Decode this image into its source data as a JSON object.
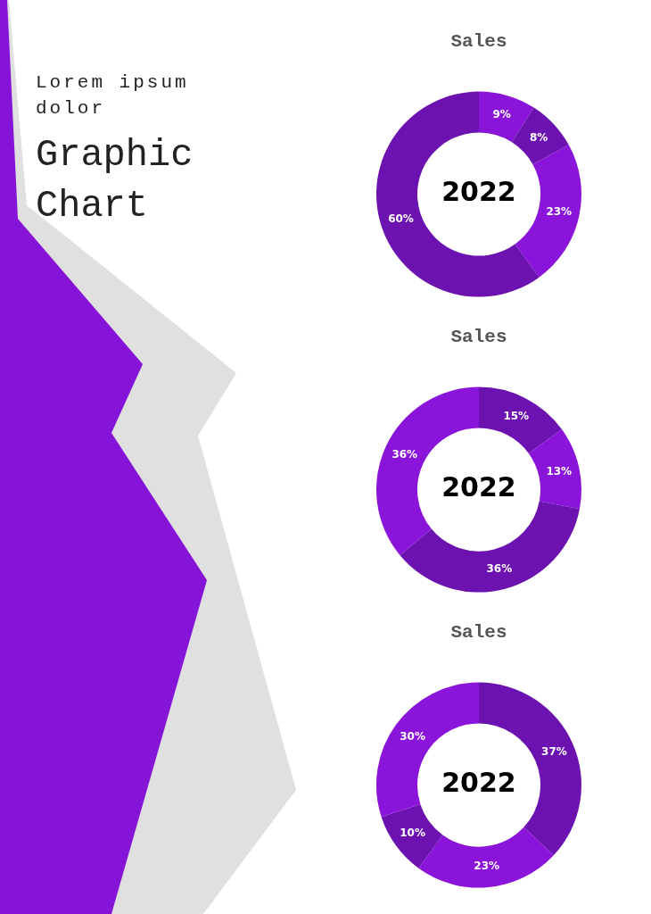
{
  "chart_data": [
    {
      "type": "other",
      "title": "Graphic Chart",
      "subtitle": "Lorem ipsum dolor"
    },
    {
      "type": "donut",
      "title": "Sales",
      "categories": [
        null,
        null,
        null,
        null
      ],
      "values": [
        9,
        8,
        23,
        60
      ],
      "value_labels": [
        "9%",
        "8%",
        "23%",
        "60%"
      ],
      "colors": [
        "#8a14d9",
        "#6b12b0",
        "#8a14d9",
        "#6b12b0"
      ],
      "annotations": [
        "2022"
      ]
    },
    {
      "type": "donut",
      "title": "Sales",
      "categories": [
        null,
        null,
        null,
        null
      ],
      "values": [
        15,
        13,
        36,
        36
      ],
      "value_labels": [
        "15%",
        "13%",
        "36%",
        "36%"
      ],
      "colors": [
        "#6b12b0",
        "#8a14d9",
        "#6b12b0",
        "#8a14d9"
      ],
      "annotations": [
        "2022"
      ]
    },
    {
      "type": "donut",
      "title": "Sales",
      "categories": [
        null,
        null,
        null,
        null
      ],
      "values": [
        37,
        23,
        10,
        30
      ],
      "value_labels": [
        "37%",
        "23%",
        "10%",
        "30%"
      ],
      "colors": [
        "#6b12b0",
        "#8a14d9",
        "#6b12b0",
        "#8a14d9"
      ],
      "annotations": [
        "2022"
      ]
    }
  ]
}
